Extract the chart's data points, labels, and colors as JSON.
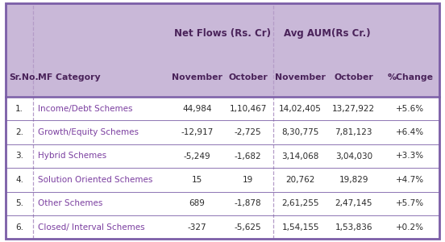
{
  "header_bg": "#c9b8d8",
  "header_text_color": "#4a235a",
  "body_bg": "#ffffff",
  "border_color": "#7b5ea7",
  "dashed_color": "#b49cc8",
  "col_group1": "Net Flows (Rs. Cr)",
  "col_group2": "Avg AUM(Rs Cr.)",
  "col_headers": [
    "Sr.No.",
    "MF Category",
    "November",
    "October",
    "November",
    "October",
    "%Change"
  ],
  "rows": [
    [
      "1.",
      "Income/Debt Schemes",
      "44,984",
      "1,10,467",
      "14,02,405",
      "13,27,922",
      "+5.6%"
    ],
    [
      "2.",
      "Growth/Equity Schemes",
      "-12,917",
      "-2,725",
      "8,30,775",
      "7,81,123",
      "+6.4%"
    ],
    [
      "3.",
      "Hybrid Schemes",
      "-5,249",
      "-1,682",
      "3,14,068",
      "3,04,030",
      "+3.3%"
    ],
    [
      "4.",
      "Solution Oriented Schemes",
      "15",
      "19",
      "20,762",
      "19,829",
      "+4.7%"
    ],
    [
      "5.",
      "Other Schemes",
      "689",
      "-1,878",
      "2,61,255",
      "2,47,145",
      "+5.7%"
    ],
    [
      "6.",
      "Closed/ Interval Schemes",
      "-327",
      "-5,625",
      "1,54,155",
      "1,53,836",
      "+0.2%"
    ]
  ],
  "header_font_size": 7.8,
  "body_font_size": 7.5,
  "group_font_size": 8.5,
  "sr_no_color": "#2a2a2a",
  "category_color": "#7b3fa0",
  "data_color": "#2a2a2a"
}
